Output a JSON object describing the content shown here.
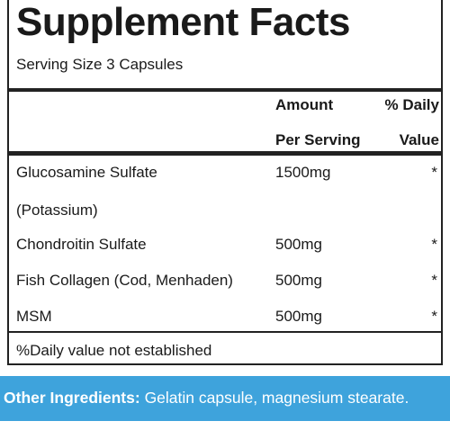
{
  "header": {
    "title": "Supplement Facts",
    "serving": "Serving Size 3 Capsules"
  },
  "table": {
    "columns": [
      {
        "line1": "Amount",
        "line2": "Per Serving"
      },
      {
        "line1": "% Daily",
        "line2": "Value"
      }
    ],
    "rows": [
      {
        "name": [
          "Glucosamine Sulfate",
          "(Potassium)"
        ],
        "amount": "1500mg",
        "daily": "*"
      },
      {
        "name": [
          "Chondroitin Sulfate"
        ],
        "amount": "500mg",
        "daily": "*"
      },
      {
        "name": [
          "Fish Collagen (Cod, Menhaden)"
        ],
        "amount": "500mg",
        "daily": "*"
      },
      {
        "name": [
          "MSM"
        ],
        "amount": "500mg",
        "daily": "*"
      }
    ],
    "footnote": "%Daily value not established"
  },
  "other": {
    "label": "Other Ingredients:",
    "text": "Gelatin capsule, magnesium stearate."
  }
}
